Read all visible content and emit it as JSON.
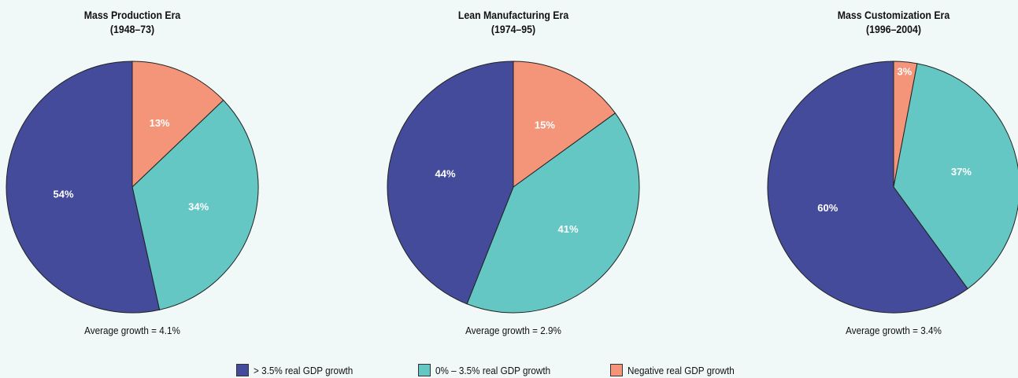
{
  "colors": {
    "high": "#434b9a",
    "mid": "#64c7c4",
    "negative": "#f4957a",
    "background": "#f1f8f8"
  },
  "chart_data": [
    {
      "type": "pie",
      "title_line1": "Mass Production Era",
      "title_line2": "(1948–73)",
      "caption": "Average growth = 4.1%",
      "slices": [
        {
          "series": "negative",
          "value": 13,
          "label": "13%"
        },
        {
          "series": "mid",
          "value": 34,
          "label": "34%"
        },
        {
          "series": "high",
          "value": 54,
          "label": "54%"
        }
      ]
    },
    {
      "type": "pie",
      "title_line1": "Lean Manufacturing Era",
      "title_line2": "(1974–95)",
      "caption": "Average growth = 2.9%",
      "slices": [
        {
          "series": "negative",
          "value": 15,
          "label": "15%"
        },
        {
          "series": "mid",
          "value": 41,
          "label": "41%"
        },
        {
          "series": "high",
          "value": 44,
          "label": "44%"
        }
      ]
    },
    {
      "type": "pie",
      "title_line1": "Mass Customization Era",
      "title_line2": "(1996–2004)",
      "caption": "Average growth = 3.4%",
      "slices": [
        {
          "series": "negative",
          "value": 3,
          "label": "3%"
        },
        {
          "series": "mid",
          "value": 37,
          "label": "37%"
        },
        {
          "series": "high",
          "value": 60,
          "label": "60%"
        }
      ]
    }
  ],
  "legend": [
    {
      "key": "high",
      "label": "> 3.5% real GDP growth"
    },
    {
      "key": "mid",
      "label": "0% – 3.5% real GDP growth"
    },
    {
      "key": "negative",
      "label": "Negative real GDP growth"
    }
  ]
}
